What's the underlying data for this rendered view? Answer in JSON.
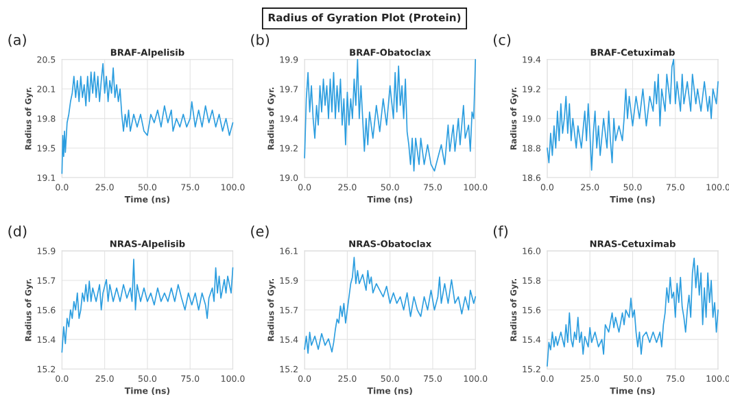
{
  "chart_data": [
    {
      "type": "line",
      "title": "BRAF-Alpelisib",
      "xlabel": "Time (ns)",
      "ylabel": "Radius of Gyr.",
      "annotations": [
        "Radius of Gyration Plot (Protein)",
        "(a)"
      ],
      "grid": true,
      "xlim": [
        0,
        100
      ],
      "xticks": [
        {
          "value": 0,
          "label": "0.0"
        },
        {
          "value": 25,
          "label": "25.0"
        },
        {
          "value": 50,
          "label": "50.0"
        },
        {
          "value": 75,
          "label": "75.0"
        },
        {
          "value": 100,
          "label": "100.0"
        }
      ],
      "ylim": [
        19.1,
        20.5
      ],
      "yticks": [
        19.1,
        {
          "value": 19.45,
          "label": "19.5"
        },
        19.8,
        {
          "value": 20.15,
          "label": "20.1"
        },
        20.5
      ],
      "series": [
        {
          "color": "#2b9ddf",
          "x": [
            0,
            0.5,
            1,
            1.5,
            2,
            3,
            4,
            5,
            6,
            7,
            8,
            9,
            10,
            11,
            12,
            13,
            14,
            15,
            16,
            17,
            18,
            19,
            20,
            21,
            22,
            23,
            24,
            25,
            26,
            27,
            28,
            29,
            30,
            31,
            32,
            33,
            34,
            35,
            36,
            37,
            38,
            39,
            40,
            42,
            44,
            46,
            48,
            50,
            52,
            54,
            56,
            58,
            60,
            62,
            64,
            65,
            67,
            69,
            71,
            73,
            75,
            76,
            78,
            80,
            82,
            84,
            86,
            88,
            90,
            92,
            94,
            96,
            98,
            100
          ],
          "values": [
            19.15,
            19.6,
            19.35,
            19.65,
            19.4,
            19.75,
            19.85,
            20.0,
            20.1,
            20.3,
            20.05,
            20.25,
            20.0,
            20.3,
            20.05,
            20.2,
            19.95,
            20.3,
            20.0,
            20.35,
            20.1,
            20.35,
            20.05,
            20.3,
            20.0,
            20.25,
            20.45,
            20.1,
            20.3,
            20.0,
            20.25,
            20.1,
            20.4,
            20.05,
            20.2,
            20.0,
            20.15,
            19.85,
            19.65,
            19.85,
            19.7,
            19.9,
            19.65,
            19.85,
            19.7,
            19.85,
            19.65,
            19.6,
            19.85,
            19.75,
            19.9,
            19.7,
            19.95,
            19.75,
            19.9,
            19.65,
            19.8,
            19.7,
            19.85,
            19.7,
            19.8,
            20.0,
            19.7,
            19.9,
            19.7,
            19.95,
            19.75,
            19.9,
            19.7,
            19.85,
            19.65,
            19.8,
            19.6,
            19.75
          ]
        }
      ]
    },
    {
      "type": "line",
      "title": "BRAF-Obatoclax",
      "xlabel": "Time (ns)",
      "ylabel": "Radius of Gyr.",
      "annotations": [
        "(b)"
      ],
      "grid": true,
      "xlim": [
        0,
        100
      ],
      "xticks": [
        {
          "value": 0,
          "label": "0.0"
        },
        {
          "value": 25,
          "label": "25.0"
        },
        {
          "value": 50,
          "label": "50.0"
        },
        {
          "value": 75,
          "label": "75.0"
        },
        {
          "value": 100,
          "label": "100.0"
        }
      ],
      "ylim": [
        19.0,
        19.9
      ],
      "yticks": [
        {
          "value": 19.0,
          "label": "19.0"
        },
        {
          "value": 19.225,
          "label": "19.2"
        },
        {
          "value": 19.45,
          "label": "19.4"
        },
        {
          "value": 19.675,
          "label": "19.7"
        },
        19.9
      ],
      "series": [
        {
          "color": "#2b9ddf",
          "x": [
            0,
            1,
            2,
            3,
            4,
            5,
            6,
            7,
            8,
            9,
            10,
            11,
            12,
            13,
            14,
            15,
            16,
            17,
            18,
            19,
            20,
            21,
            22,
            23,
            24,
            25,
            26,
            27,
            28,
            29,
            30,
            31,
            32,
            33,
            34,
            35,
            36,
            37,
            38,
            40,
            42,
            44,
            46,
            48,
            50,
            52,
            53,
            54,
            55,
            56,
            57,
            58,
            59,
            60,
            61,
            62,
            63,
            64,
            65,
            67,
            68,
            70,
            72,
            74,
            76,
            78,
            80,
            82,
            84,
            85,
            87,
            88,
            90,
            91,
            93,
            94,
            96,
            97,
            98,
            99,
            100
          ],
          "values": [
            19.15,
            19.6,
            19.8,
            19.5,
            19.7,
            19.45,
            19.3,
            19.55,
            19.4,
            19.7,
            19.5,
            19.75,
            19.55,
            19.7,
            19.45,
            19.75,
            19.5,
            19.8,
            19.45,
            19.7,
            19.5,
            19.75,
            19.4,
            19.6,
            19.25,
            19.65,
            19.4,
            19.6,
            19.45,
            19.75,
            19.55,
            19.9,
            19.45,
            19.7,
            19.45,
            19.2,
            19.45,
            19.25,
            19.5,
            19.3,
            19.55,
            19.35,
            19.6,
            19.4,
            19.7,
            19.45,
            19.8,
            19.5,
            19.85,
            19.55,
            19.7,
            19.45,
            19.75,
            19.35,
            19.25,
            19.1,
            19.3,
            19.05,
            19.3,
            19.1,
            19.3,
            19.1,
            19.25,
            19.1,
            19.05,
            19.15,
            19.25,
            19.1,
            19.4,
            19.2,
            19.4,
            19.2,
            19.45,
            19.25,
            19.55,
            19.3,
            19.4,
            19.2,
            19.5,
            19.45,
            19.9
          ]
        }
      ]
    },
    {
      "type": "line",
      "title": "BRAF-Cetuximab",
      "xlabel": "Time (ns)",
      "ylabel": "Radius of Gyr.",
      "annotations": [
        "(c)"
      ],
      "grid": true,
      "xlim": [
        0,
        100
      ],
      "xticks": [
        {
          "value": 0,
          "label": "0.0"
        },
        {
          "value": 25,
          "label": "25.0"
        },
        {
          "value": 50,
          "label": "50.0"
        },
        {
          "value": 75,
          "label": "75.0"
        },
        {
          "value": 100,
          "label": "100.0"
        }
      ],
      "ylim": [
        18.6,
        19.4
      ],
      "yticks": [
        18.6,
        18.8,
        {
          "value": 19.0,
          "label": "19.0"
        },
        19.2,
        19.4
      ],
      "series": [
        {
          "color": "#2b9ddf",
          "x": [
            0,
            1,
            2,
            3,
            4,
            5,
            6,
            7,
            8,
            9,
            10,
            11,
            12,
            13,
            14,
            15,
            17,
            18,
            20,
            22,
            23,
            24,
            25,
            26,
            27,
            28,
            29,
            30,
            31,
            33,
            35,
            36,
            37,
            38,
            39,
            40,
            42,
            44,
            45,
            46,
            47,
            48,
            50,
            52,
            54,
            56,
            58,
            60,
            62,
            63,
            64,
            65,
            66,
            67,
            69,
            70,
            72,
            73,
            74,
            75,
            76,
            78,
            79,
            80,
            82,
            84,
            85,
            87,
            88,
            90,
            92,
            94,
            95,
            96,
            97,
            99,
            100
          ],
          "values": [
            18.8,
            18.7,
            18.9,
            18.75,
            18.95,
            18.8,
            19.05,
            18.85,
            19.1,
            18.9,
            19.0,
            19.15,
            18.9,
            19.1,
            18.85,
            19.0,
            18.8,
            18.95,
            18.8,
            19.05,
            18.85,
            19.1,
            18.9,
            18.65,
            18.9,
            19.05,
            18.8,
            18.95,
            18.75,
            19.0,
            18.8,
            19.05,
            18.85,
            18.7,
            19.0,
            18.85,
            18.95,
            18.85,
            19.0,
            19.2,
            19.0,
            19.15,
            18.95,
            19.15,
            19.0,
            19.2,
            18.95,
            19.15,
            19.05,
            19.25,
            19.1,
            19.3,
            18.95,
            19.2,
            19.05,
            19.3,
            19.1,
            19.35,
            19.4,
            19.1,
            19.25,
            19.05,
            19.3,
            19.1,
            19.25,
            19.05,
            19.3,
            19.1,
            19.2,
            19.05,
            19.25,
            19.05,
            19.15,
            19.0,
            19.2,
            19.1,
            19.25
          ]
        }
      ]
    },
    {
      "type": "line",
      "title": "NRAS-Alpelisib",
      "xlabel": "Time (ns)",
      "ylabel": "Radius of Gyr.",
      "annotations": [
        "(d)"
      ],
      "grid": true,
      "xlim": [
        0,
        100
      ],
      "xticks": [
        {
          "value": 0,
          "label": "0.0"
        },
        {
          "value": 25,
          "label": "25.0"
        },
        {
          "value": 50,
          "label": "50.0"
        },
        {
          "value": 75,
          "label": "75.0"
        },
        {
          "value": 100,
          "label": "100.0"
        }
      ],
      "ylim": [
        15.2,
        15.9
      ],
      "yticks": [
        15.2,
        {
          "value": 15.375,
          "label": "15.4"
        },
        {
          "value": 15.55,
          "label": "15.6"
        },
        {
          "value": 15.725,
          "label": "15.7"
        },
        15.9
      ],
      "series": [
        {
          "color": "#2b9ddf",
          "x": [
            0,
            1,
            2,
            3,
            4,
            5,
            6,
            7,
            8,
            9,
            10,
            11,
            12,
            13,
            14,
            15,
            16,
            17,
            18,
            20,
            22,
            23,
            24,
            26,
            27,
            28,
            30,
            32,
            34,
            36,
            38,
            40,
            41,
            42,
            43,
            44,
            46,
            48,
            50,
            52,
            54,
            56,
            58,
            60,
            62,
            64,
            66,
            68,
            70,
            72,
            74,
            76,
            78,
            80,
            82,
            84,
            85,
            86,
            88,
            89,
            90,
            91,
            92,
            93,
            95,
            96,
            97,
            99,
            100
          ],
          "values": [
            15.3,
            15.45,
            15.35,
            15.5,
            15.45,
            15.55,
            15.5,
            15.6,
            15.55,
            15.65,
            15.5,
            15.55,
            15.65,
            15.6,
            15.7,
            15.6,
            15.72,
            15.6,
            15.68,
            15.6,
            15.7,
            15.55,
            15.65,
            15.73,
            15.6,
            15.7,
            15.6,
            15.68,
            15.6,
            15.7,
            15.62,
            15.68,
            15.6,
            15.85,
            15.55,
            15.7,
            15.6,
            15.68,
            15.6,
            15.65,
            15.58,
            15.68,
            15.6,
            15.65,
            15.6,
            15.68,
            15.6,
            15.7,
            15.62,
            15.55,
            15.65,
            15.58,
            15.65,
            15.55,
            15.65,
            15.58,
            15.5,
            15.62,
            15.68,
            15.6,
            15.8,
            15.65,
            15.75,
            15.62,
            15.73,
            15.65,
            15.75,
            15.65,
            15.8
          ]
        }
      ]
    },
    {
      "type": "line",
      "title": "NRAS-Obatoclax",
      "xlabel": "Time (ns)",
      "ylabel": "Radius of Gyr.",
      "annotations": [
        "(e)"
      ],
      "grid": true,
      "xlim": [
        0,
        100
      ],
      "xticks": [
        {
          "value": 0,
          "label": "0.0"
        },
        {
          "value": 25,
          "label": "25.0"
        },
        {
          "value": 50,
          "label": "50.0"
        },
        {
          "value": 75,
          "label": "75.0"
        },
        {
          "value": 100,
          "label": "100.0"
        }
      ],
      "ylim": [
        15.2,
        16.1
      ],
      "yticks": [
        15.2,
        {
          "value": 15.425,
          "label": "15.4"
        },
        {
          "value": 15.65,
          "label": "15.7"
        },
        {
          "value": 15.875,
          "label": "15.9"
        },
        16.1
      ],
      "series": [
        {
          "color": "#2b9ddf",
          "x": [
            0,
            1,
            2,
            3,
            4,
            6,
            8,
            10,
            12,
            14,
            16,
            17,
            18,
            19,
            20,
            21,
            22,
            23,
            24,
            25,
            26,
            27,
            28,
            29,
            30,
            31,
            32,
            34,
            36,
            37,
            38,
            39,
            40,
            42,
            44,
            46,
            48,
            50,
            52,
            54,
            56,
            58,
            60,
            62,
            64,
            66,
            68,
            70,
            72,
            74,
            76,
            78,
            79,
            80,
            82,
            84,
            86,
            88,
            90,
            92,
            94,
            96,
            97,
            99,
            100
          ],
          "values": [
            15.35,
            15.45,
            15.32,
            15.48,
            15.38,
            15.45,
            15.35,
            15.47,
            15.38,
            15.43,
            15.33,
            15.4,
            15.5,
            15.58,
            15.55,
            15.68,
            15.6,
            15.7,
            15.55,
            15.65,
            15.75,
            15.85,
            15.9,
            16.05,
            15.85,
            15.95,
            15.85,
            15.92,
            15.8,
            15.95,
            15.85,
            15.9,
            15.78,
            15.85,
            15.8,
            15.75,
            15.83,
            15.7,
            15.78,
            15.7,
            15.75,
            15.65,
            15.78,
            15.6,
            15.75,
            15.65,
            15.6,
            15.75,
            15.65,
            15.8,
            15.65,
            15.75,
            15.9,
            15.7,
            15.85,
            15.7,
            15.88,
            15.7,
            15.75,
            15.62,
            15.75,
            15.65,
            15.8,
            15.7,
            15.75
          ]
        }
      ]
    },
    {
      "type": "line",
      "title": "NRAS-Cetuximab",
      "xlabel": "Time (ns)",
      "ylabel": "Radius of Gyr.",
      "annotations": [
        "(f)"
      ],
      "grid": true,
      "xlim": [
        0,
        100
      ],
      "xticks": [
        {
          "value": 0,
          "label": "0.0"
        },
        {
          "value": 25,
          "label": "25.0"
        },
        {
          "value": 50,
          "label": "50.0"
        },
        {
          "value": 75,
          "label": "75.0"
        },
        {
          "value": 100,
          "label": "100.0"
        }
      ],
      "ylim": [
        15.2,
        16.0
      ],
      "yticks": [
        15.2,
        15.4,
        15.6,
        15.8,
        {
          "value": 16.0,
          "label": "16.0"
        }
      ],
      "series": [
        {
          "color": "#2b9ddf",
          "x": [
            0,
            1,
            2,
            3,
            4,
            5,
            6,
            8,
            10,
            11,
            12,
            13,
            14,
            15,
            16,
            17,
            18,
            19,
            20,
            21,
            22,
            24,
            25,
            26,
            28,
            30,
            32,
            33,
            34,
            36,
            38,
            39,
            40,
            42,
            44,
            45,
            46,
            48,
            49,
            50,
            51,
            52,
            53,
            54,
            55,
            56,
            58,
            60,
            62,
            64,
            66,
            67,
            68,
            69,
            70,
            71,
            72,
            73,
            74,
            75,
            76,
            77,
            78,
            79,
            80,
            81,
            82,
            83,
            84,
            85,
            86,
            87,
            88,
            89,
            90,
            91,
            92,
            93,
            94,
            95,
            96,
            97,
            98,
            99,
            100
          ],
          "values": [
            15.22,
            15.38,
            15.33,
            15.45,
            15.35,
            15.42,
            15.36,
            15.45,
            15.35,
            15.5,
            15.38,
            15.58,
            15.4,
            15.35,
            15.45,
            15.4,
            15.55,
            15.38,
            15.45,
            15.3,
            15.42,
            15.35,
            15.48,
            15.38,
            15.45,
            15.35,
            15.4,
            15.3,
            15.5,
            15.45,
            15.58,
            15.48,
            15.55,
            15.45,
            15.58,
            15.5,
            15.6,
            15.55,
            15.68,
            15.55,
            15.6,
            15.45,
            15.35,
            15.45,
            15.3,
            15.42,
            15.45,
            15.38,
            15.45,
            15.38,
            15.45,
            15.35,
            15.5,
            15.58,
            15.75,
            15.65,
            15.82,
            15.68,
            15.72,
            15.55,
            15.78,
            15.65,
            15.82,
            15.62,
            15.55,
            15.45,
            15.6,
            15.7,
            15.55,
            15.85,
            15.95,
            15.75,
            15.9,
            15.7,
            15.85,
            15.5,
            15.75,
            15.55,
            15.85,
            15.65,
            15.8,
            15.55,
            15.65,
            15.45,
            15.6
          ]
        }
      ]
    }
  ]
}
